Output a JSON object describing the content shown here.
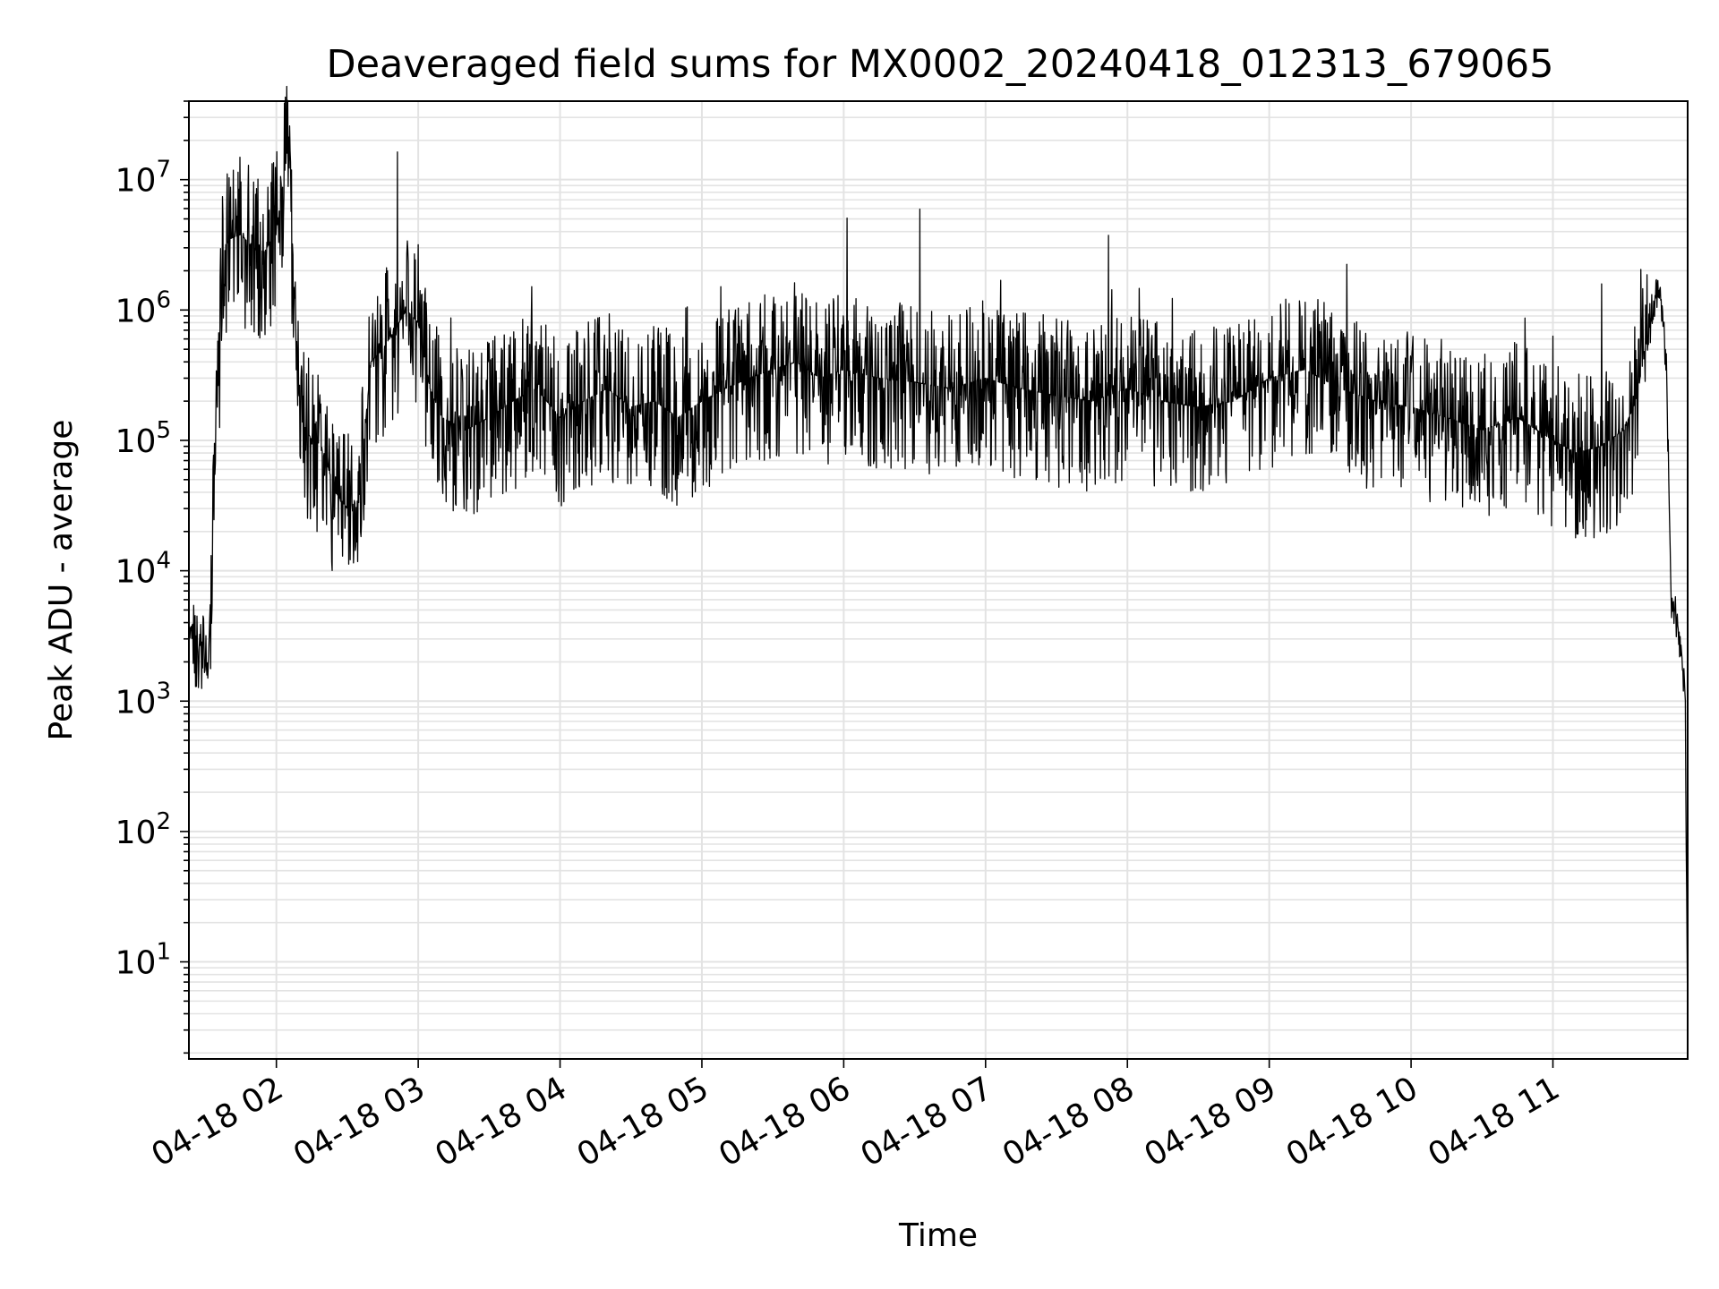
{
  "chart_data": {
    "type": "line",
    "title": "Deaveraged field sums for MX0002_20240418_012313_679065",
    "xlabel": "Time",
    "ylabel": "Peak ADU - average",
    "yscale": "log",
    "ylim": [
      1.8,
      40000000
    ],
    "xlim": [
      "04-18 01:23",
      "04-18 11:57"
    ],
    "grid": true,
    "line_color": "#000000",
    "grid_color": "#e3e3e3",
    "x_ticks": [
      "04-18 02",
      "04-18 03",
      "04-18 04",
      "04-18 05",
      "04-18 06",
      "04-18 07",
      "04-18 08",
      "04-18 09",
      "04-18 10",
      "04-18 11"
    ],
    "y_ticks": [
      {
        "base": "10",
        "exp": "1",
        "value": 10
      },
      {
        "base": "10",
        "exp": "2",
        "value": 100
      },
      {
        "base": "10",
        "exp": "3",
        "value": 1000
      },
      {
        "base": "10",
        "exp": "4",
        "value": 10000
      },
      {
        "base": "10",
        "exp": "5",
        "value": 100000
      },
      {
        "base": "10",
        "exp": "6",
        "value": 1000000
      },
      {
        "base": "10",
        "exp": "7",
        "value": 10000000
      }
    ],
    "series": [
      {
        "values_note": "approximate envelope trace read from plot",
        "x": [
          "01:23",
          "01:25",
          "01:27",
          "01:29",
          "01:31",
          "01:33",
          "01:35",
          "01:37",
          "01:40",
          "01:45",
          "01:50",
          "01:55",
          "02:00",
          "02:05",
          "02:10",
          "02:15",
          "02:20",
          "02:25",
          "02:30",
          "02:35",
          "02:40",
          "02:45",
          "02:50",
          "02:55",
          "03:00",
          "03:05",
          "03:10",
          "03:20",
          "03:30",
          "03:40",
          "03:50",
          "04:00",
          "04:10",
          "04:20",
          "04:30",
          "04:40",
          "04:50",
          "05:00",
          "05:10",
          "05:20",
          "05:30",
          "05:40",
          "05:50",
          "06:00",
          "06:15",
          "06:30",
          "06:45",
          "07:00",
          "07:15",
          "07:30",
          "07:45",
          "08:00",
          "08:15",
          "08:30",
          "08:45",
          "09:00",
          "09:15",
          "09:30",
          "09:45",
          "10:00",
          "10:15",
          "10:30",
          "10:45",
          "11:00",
          "11:10",
          "11:20",
          "11:30",
          "11:35",
          "11:40",
          "11:43",
          "11:46",
          "11:48",
          "11:50",
          "11:52",
          "11:54",
          "11:56",
          "11:57"
        ],
        "y": [
          3500,
          4000,
          2500,
          3000,
          1500,
          20000,
          150000,
          2500000,
          3500000,
          3800000,
          3000000,
          2800000,
          4000000,
          18000000,
          150000,
          100000,
          80000,
          40000,
          30000,
          35000,
          400000,
          500000,
          700000,
          1000000,
          800000,
          250000,
          150000,
          120000,
          150000,
          200000,
          250000,
          150000,
          200000,
          250000,
          180000,
          200000,
          150000,
          200000,
          250000,
          300000,
          350000,
          400000,
          300000,
          350000,
          300000,
          280000,
          250000,
          300000,
          250000,
          220000,
          200000,
          250000,
          200000,
          180000,
          200000,
          300000,
          350000,
          250000,
          200000,
          180000,
          150000,
          120000,
          150000,
          100000,
          80000,
          90000,
          120000,
          200000,
          600000,
          1300000,
          1200000,
          400000,
          6000,
          4500,
          3000,
          1000,
          3.5
        ]
      }
    ]
  }
}
